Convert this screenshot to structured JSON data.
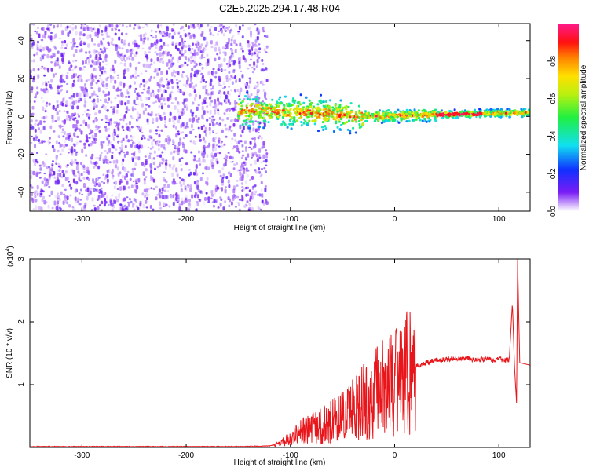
{
  "figure": {
    "title": "C2E5.2025.294.17.48.R04"
  },
  "chart_data": [
    {
      "type": "heatmap",
      "xlabel": "Height of straight line (km)",
      "ylabel": "Frequency (Hz)",
      "xlim": [
        -350,
        130
      ],
      "ylim": [
        -50,
        49
      ],
      "xticks": [
        -300,
        -200,
        -100,
        0,
        100
      ],
      "yticks": [
        -40,
        -20,
        0,
        20,
        40
      ],
      "colorbar": {
        "label": "Normalized spectral amplitude",
        "range": [
          0,
          1
        ],
        "ticks": [
          0.0,
          0.2,
          0.4,
          0.6,
          0.8
        ]
      },
      "regions": [
        {
          "x_range": [
            -350,
            -122
          ],
          "f_range": [
            -50,
            49
          ],
          "amplitude": [
            0.0,
            0.2
          ]
        },
        {
          "x_range": [
            -150,
            130
          ],
          "f_center": [
            3,
            2,
            0,
            1,
            2
          ],
          "f_center_x": [
            -150,
            -80,
            -30,
            50,
            130
          ],
          "amplitude": [
            0.2,
            1.0
          ]
        }
      ]
    },
    {
      "type": "line",
      "xlabel": "Height of straight line (km)",
      "ylabel": "SNR (10 * v/v)",
      "scale_label": "(x10",
      "scale_exp": "4",
      "scale_close": ")",
      "xlim": [
        -350,
        130
      ],
      "ylim": [
        0,
        3
      ],
      "xticks": [
        -300,
        -200,
        -100,
        0,
        100
      ],
      "yticks": [
        1,
        2,
        3
      ],
      "series": [
        {
          "color": "#e8161b",
          "x": [
            -350,
            -300,
            -250,
            -200,
            -150,
            -120,
            -110,
            -100,
            -90,
            -80,
            -70,
            -60,
            -50,
            -40,
            -30,
            -20,
            -10,
            0,
            10,
            20,
            30,
            40,
            50,
            60,
            70,
            80,
            90,
            95,
            100,
            105,
            110,
            113,
            115,
            117,
            118,
            120,
            125,
            130
          ],
          "y": [
            0.01,
            0.01,
            0.01,
            0.01,
            0.01,
            0.02,
            0.06,
            0.15,
            0.24,
            0.3,
            0.35,
            0.42,
            0.52,
            0.6,
            0.72,
            0.85,
            0.95,
            1.02,
            1.15,
            1.28,
            1.35,
            1.39,
            1.4,
            1.41,
            1.41,
            1.4,
            1.41,
            1.38,
            1.42,
            1.38,
            1.4,
            2.3,
            1.3,
            0.7,
            3.0,
            1.35,
            1.33,
            1.31
          ]
        }
      ]
    }
  ]
}
